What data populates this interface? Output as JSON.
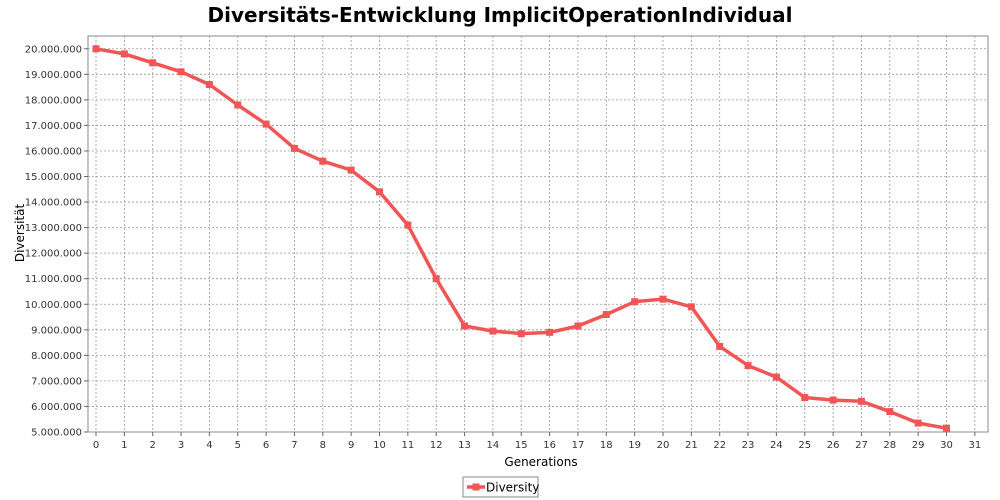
{
  "chart_data": {
    "type": "line",
    "title": "Diversitäts-Entwicklung ImplicitOperationIndividual",
    "xlabel": "Generations",
    "ylabel": "Diversität",
    "xlim": [
      0,
      31
    ],
    "ylim": [
      5000000,
      20500000
    ],
    "x_ticks": [
      0,
      1,
      2,
      3,
      4,
      5,
      6,
      7,
      8,
      9,
      10,
      11,
      12,
      13,
      14,
      15,
      16,
      17,
      18,
      19,
      20,
      21,
      22,
      23,
      24,
      25,
      26,
      27,
      28,
      29,
      30,
      31
    ],
    "x_tick_labels": [
      "0",
      "1",
      "2",
      "3",
      "4",
      "5",
      "6",
      "7",
      "8",
      "9",
      "10",
      "11",
      "12",
      "13",
      "14",
      "15",
      "16",
      "17",
      "18",
      "19",
      "20",
      "21",
      "22",
      "23",
      "24",
      "25",
      "26",
      "27",
      "28",
      "29",
      "30",
      "31"
    ],
    "y_ticks": [
      5000000,
      6000000,
      7000000,
      8000000,
      9000000,
      10000000,
      11000000,
      12000000,
      13000000,
      14000000,
      15000000,
      16000000,
      17000000,
      18000000,
      19000000,
      20000000
    ],
    "y_tick_labels": [
      "5.000.000",
      "6.000.000",
      "7.000.000",
      "8.000.000",
      "9.000.000",
      "10.000.000",
      "11.000.000",
      "12.000.000",
      "13.000.000",
      "14.000.000",
      "15.000.000",
      "16.000.000",
      "17.000.000",
      "18.000.000",
      "19.000.000",
      "20.000.000"
    ],
    "grid": true,
    "legend_position": "bottom-center",
    "series": [
      {
        "name": "Diversity",
        "color": "#f25555",
        "x": [
          0,
          1,
          2,
          3,
          4,
          5,
          6,
          7,
          8,
          9,
          10,
          11,
          12,
          13,
          14,
          15,
          16,
          17,
          18,
          19,
          20,
          21,
          22,
          23,
          24,
          25,
          26,
          27,
          28,
          29,
          30
        ],
        "values": [
          20000000,
          19800000,
          19450000,
          19100000,
          18600000,
          17800000,
          17050000,
          16100000,
          15600000,
          15250000,
          14400000,
          13100000,
          11000000,
          9150000,
          8950000,
          8850000,
          8900000,
          9150000,
          9600000,
          10100000,
          10200000,
          9900000,
          8350000,
          7600000,
          7150000,
          6350000,
          6250000,
          6200000,
          5800000,
          5350000,
          5150000
        ]
      }
    ]
  }
}
